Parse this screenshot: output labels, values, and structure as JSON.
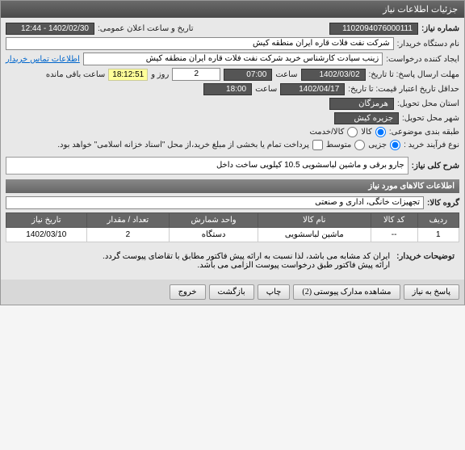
{
  "titlebar": "جزئیات اطلاعات نیاز",
  "fields": {
    "need_no_label": "شماره نیاز:",
    "need_no": "1102094076000111",
    "announce_label": "تاریخ و ساعت اعلان عمومی:",
    "announce_val": "1402/02/30 - 12:44",
    "buyer_org_label": "نام دستگاه خریدار:",
    "buyer_org": "شرکت نفت فلات قاره ایران منطقه کیش",
    "creator_label": "ایجاد کننده درخواست:",
    "creator": "زینب سیادت کارشناس خرید  شرکت نفت فلات قاره ایران منطقه کیش",
    "contact_link": "اطلاعات تماس خریدار",
    "deadline_label": "مهلت ارسال پاسخ: تا تاریخ:",
    "deadline_date": "1402/03/02",
    "time_label": "ساعت",
    "deadline_time": "07:00",
    "days_label": "روز و",
    "days_val": "2",
    "remain_time": "18:12:51",
    "remain_label": "ساعت باقی مانده",
    "validity_label": "حداقل تاریخ اعتبار قیمت: تا تاریخ:",
    "validity_date": "1402/04/17",
    "validity_time": "18:00",
    "province_label": "استان محل تحویل:",
    "province": "هرمزگان",
    "city_label": "شهر محل تحویل:",
    "city": "جزیره کیش",
    "category_label": "طبقه بندی موضوعی:",
    "opt_goods": "کالا",
    "opt_service": "کالا/خدمت",
    "buy_process_label": "نوع فرآیند خرید :",
    "opt_partial": "جزیی",
    "opt_medium": "متوسط",
    "payment_note": "پرداخت تمام یا بخشی از مبلغ خرید،از محل \"اسناد خزانه اسلامی\" خواهد بود."
  },
  "summary": {
    "label": "شرح کلی نیاز:",
    "text": "جارو برقی و ماشین لباسشویی 10.5 کیلویی ساخت داخل"
  },
  "goods_section": {
    "title": "اطلاعات کالاهای مورد نیاز",
    "group_label": "گروه کالا:",
    "group_val": "تجهیزات خانگی، اداری و صنعتی"
  },
  "table": {
    "headers": [
      "ردیف",
      "کد کالا",
      "نام کالا",
      "واحد شمارش",
      "تعداد / مقدار",
      "تاریخ نیاز"
    ],
    "rows": [
      [
        "1",
        "--",
        "ماشین لباسشویی",
        "دستگاه",
        "2",
        "1402/03/10"
      ]
    ]
  },
  "buyer_notes": {
    "label": "توضیحات خریدار:",
    "text": "ایران کد مشابه می باشد، لذا نسبت به ارائه پیش فاکتور مطابق با تقاضای پیوست گردد.\nارائه پیش فاکتور طبق درخواست پیوست الزامی می باشد."
  },
  "buttons": {
    "respond": "پاسخ به نیاز",
    "attachments": "مشاهده مدارک پیوستی (2)",
    "print": "چاپ",
    "back": "بازگشت",
    "exit": "خروج"
  }
}
